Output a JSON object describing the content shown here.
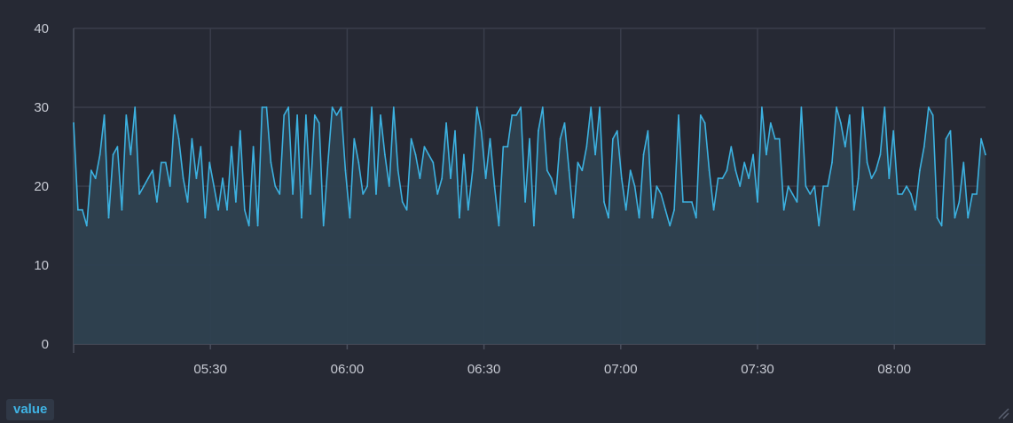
{
  "chart_data": {
    "type": "area",
    "x_labels": [
      "05:30",
      "06:00",
      "06:30",
      "07:00",
      "07:30",
      "08:00"
    ],
    "y_ticks": [
      0,
      10,
      20,
      30,
      40
    ],
    "ylim": [
      0,
      40
    ],
    "xlim": [
      "05:00",
      "08:20"
    ],
    "grid": true,
    "legend": "bottom-left",
    "series": [
      {
        "name": "value",
        "values": [
          28,
          17,
          17,
          15,
          22,
          21,
          24,
          29,
          16,
          24,
          25,
          17,
          29,
          24,
          30,
          19,
          20,
          21,
          22,
          18,
          23,
          23,
          20,
          29,
          26,
          21,
          18,
          26,
          21,
          25,
          16,
          23,
          20,
          17,
          21,
          17,
          25,
          18,
          27,
          17,
          15,
          25,
          15,
          30,
          30,
          23,
          20,
          19,
          29,
          30,
          19,
          29,
          16,
          29,
          19,
          29,
          28,
          15,
          23,
          30,
          29,
          30,
          22,
          16,
          26,
          23,
          19,
          20,
          30,
          19,
          29,
          24,
          20,
          30,
          22,
          18,
          17,
          26,
          24,
          21,
          25,
          24,
          23,
          19,
          21,
          28,
          21,
          27,
          16,
          24,
          17,
          22,
          30,
          27,
          21,
          26,
          20,
          15,
          25,
          25,
          29,
          29,
          30,
          18,
          26,
          15,
          27,
          30,
          22,
          21,
          19,
          26,
          28,
          22,
          16,
          23,
          22,
          25,
          30,
          24,
          30,
          18,
          16,
          26,
          27,
          21,
          17,
          22,
          20,
          16,
          24,
          27,
          16,
          20,
          19,
          17,
          15,
          17,
          29,
          18,
          18,
          18,
          16,
          29,
          28,
          22,
          17,
          21,
          21,
          22,
          25,
          22,
          20,
          23,
          21,
          24,
          18,
          30,
          24,
          28,
          26,
          26,
          17,
          20,
          19,
          18,
          30,
          20,
          19,
          20,
          15,
          20,
          20,
          23,
          30,
          28,
          25,
          29,
          17,
          21,
          30,
          23,
          21,
          22,
          24,
          30,
          21,
          27,
          19,
          19,
          20,
          19,
          17,
          22,
          25,
          30,
          29,
          16,
          15,
          26,
          27,
          16,
          18,
          23,
          16,
          19,
          19,
          26,
          24
        ]
      }
    ],
    "colors": {
      "line": "#3cb1e0",
      "fill": "#2e4150",
      "grid": "#3a3e4b",
      "axis_text": "#c7cad3",
      "background": "#262934"
    }
  }
}
